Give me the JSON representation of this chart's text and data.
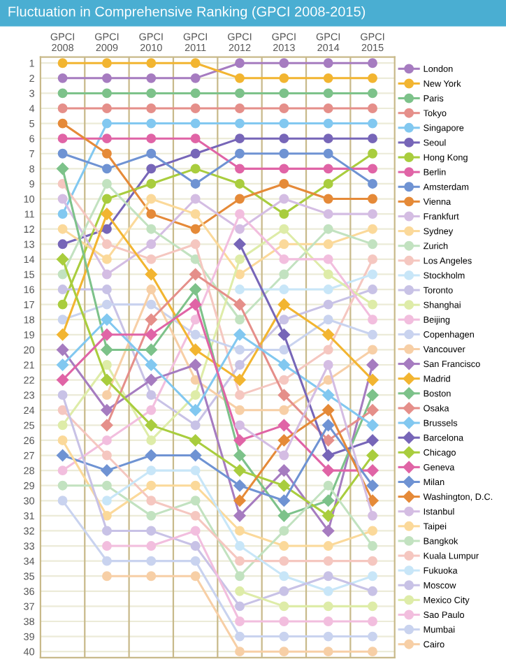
{
  "chart_data": {
    "type": "line",
    "title": "Fluctuation in Comprehensive Ranking (GPCI 2008-2015)",
    "categories": [
      "GPCI\n2008",
      "GPCI\n2009",
      "GPCI\n2010",
      "GPCI\n2011",
      "GPCI\n2012",
      "GPCI\n2013",
      "GPCI\n2014",
      "GPCI\n2015"
    ],
    "ylim": [
      40.4,
      0.6
    ],
    "yticks": [
      1,
      2,
      3,
      4,
      5,
      6,
      7,
      8,
      9,
      10,
      11,
      12,
      13,
      14,
      15,
      16,
      17,
      18,
      19,
      20,
      21,
      22,
      23,
      24,
      25,
      26,
      27,
      28,
      29,
      30,
      31,
      32,
      33,
      34,
      35,
      36,
      37,
      38,
      39,
      40
    ],
    "grid": "y",
    "legend": "right",
    "marker": "circle",
    "line_style": "solid",
    "series": [
      {
        "name": "London",
        "color": "#a67cc0",
        "values": [
          2,
          2,
          2,
          2,
          1,
          1,
          1,
          1
        ]
      },
      {
        "name": "New York",
        "color": "#f2b531",
        "values": [
          1,
          1,
          1,
          1,
          2,
          2,
          2,
          2
        ]
      },
      {
        "name": "Paris",
        "color": "#7dc28a",
        "values": [
          3,
          3,
          3,
          3,
          3,
          3,
          3,
          3
        ]
      },
      {
        "name": "Tokyo",
        "color": "#e58f8a",
        "values": [
          4,
          4,
          4,
          4,
          4,
          4,
          4,
          4
        ]
      },
      {
        "name": "Singapore",
        "color": "#82c8f0",
        "values": [
          11,
          5,
          5,
          5,
          5,
          5,
          5,
          5
        ]
      },
      {
        "name": "Seoul",
        "color": "#7766b8",
        "values": [
          13,
          12,
          8,
          7,
          6,
          6,
          6,
          6
        ]
      },
      {
        "name": "Hong Kong",
        "color": "#a9cd3e",
        "values": [
          17,
          10,
          9,
          8,
          9,
          11,
          9,
          7
        ]
      },
      {
        "name": "Berlin",
        "color": "#e064a6",
        "values": [
          6,
          6,
          6,
          6,
          8,
          8,
          8,
          8
        ]
      },
      {
        "name": "Amsterdam",
        "color": "#6f93d3",
        "values": [
          7,
          8,
          7,
          9,
          7,
          7,
          7,
          9
        ]
      },
      {
        "name": "Vienna",
        "color": "#e58a38",
        "values": [
          5,
          7,
          11,
          12,
          10,
          9,
          10,
          10
        ]
      },
      {
        "name": "Frankfurt",
        "color": "#d4bde3",
        "values": [
          10,
          15,
          13,
          10,
          12,
          10,
          11,
          11
        ]
      },
      {
        "name": "Sydney",
        "color": "#fbd99a",
        "values": [
          12,
          14,
          10,
          11,
          15,
          13,
          13,
          12
        ]
      },
      {
        "name": "Zurich",
        "color": "#c2e2c0",
        "values": [
          15,
          9,
          12,
          14,
          18,
          15,
          12,
          13
        ]
      },
      {
        "name": "Los Angeles",
        "color": "#f5c7c0",
        "values": [
          9,
          13,
          14,
          13,
          23,
          22,
          20,
          14
        ]
      },
      {
        "name": "Stockholm",
        "color": "#c8e6f8",
        "values": [
          null,
          null,
          null,
          null,
          16,
          16,
          16,
          15
        ]
      },
      {
        "name": "Toronto",
        "color": "#c8c2e6",
        "values": [
          16,
          16,
          23,
          25,
          21,
          18,
          17,
          16
        ]
      },
      {
        "name": "Shanghai",
        "color": "#deeca8",
        "values": [
          25,
          21,
          26,
          23,
          14,
          12,
          15,
          17
        ]
      },
      {
        "name": "Beijing",
        "color": "#f2bede",
        "values": [
          28,
          26,
          24,
          18,
          11,
          14,
          14,
          18
        ]
      },
      {
        "name": "Copenhagen",
        "color": "#c9d3ef",
        "values": [
          18,
          17,
          17,
          19,
          20,
          20,
          18,
          19
        ]
      },
      {
        "name": "Vancouver",
        "color": "#f7cfa6",
        "values": [
          null,
          23,
          16,
          22,
          24,
          24,
          22,
          20
        ]
      },
      {
        "name": "San Francisco",
        "color": "#a67cc0",
        "marker": "diamond",
        "values": [
          20,
          24,
          22,
          21,
          31,
          28,
          32,
          21
        ]
      },
      {
        "name": "Madrid",
        "color": "#f2b531",
        "marker": "diamond",
        "values": [
          19,
          11,
          15,
          20,
          22,
          17,
          19,
          22
        ]
      },
      {
        "name": "Boston",
        "color": "#7dc28a",
        "marker": "diamond",
        "values": [
          8,
          20,
          20,
          16,
          27,
          31,
          30,
          23
        ]
      },
      {
        "name": "Osaka",
        "color": "#e58f8a",
        "marker": "diamond",
        "values": [
          null,
          25,
          18,
          15,
          17,
          23,
          26,
          24
        ]
      },
      {
        "name": "Brussels",
        "color": "#82c8f0",
        "marker": "diamond",
        "values": [
          21,
          18,
          21,
          24,
          19,
          21,
          23,
          25
        ]
      },
      {
        "name": "Barcelona",
        "color": "#7766b8",
        "marker": "diamond",
        "values": [
          null,
          null,
          null,
          null,
          13,
          19,
          27,
          26
        ]
      },
      {
        "name": "Chicago",
        "color": "#a9cd3e",
        "marker": "diamond",
        "values": [
          14,
          22,
          25,
          26,
          28,
          29,
          31,
          27
        ]
      },
      {
        "name": "Geneva",
        "color": "#e064a6",
        "marker": "diamond",
        "values": [
          22,
          19,
          19,
          17,
          26,
          25,
          28,
          28
        ]
      },
      {
        "name": "Milan",
        "color": "#6f93d3",
        "marker": "diamond",
        "values": [
          27,
          28,
          27,
          27,
          29,
          30,
          25,
          29
        ]
      },
      {
        "name": "Washington, D.C.",
        "color": "#e58a38",
        "marker": "diamond",
        "values": [
          null,
          null,
          null,
          null,
          30,
          26,
          24,
          30
        ]
      },
      {
        "name": "Istanbul",
        "color": "#d4bde3",
        "values": [
          null,
          null,
          null,
          null,
          25,
          27,
          21,
          31
        ]
      },
      {
        "name": "Taipei",
        "color": "#fbd99a",
        "values": [
          26,
          31,
          29,
          29,
          32,
          33,
          33,
          32
        ]
      },
      {
        "name": "Bangkok",
        "color": "#c2e2c0",
        "values": [
          29,
          29,
          31,
          30,
          35,
          32,
          29,
          33
        ]
      },
      {
        "name": "Kuala Lumpur",
        "color": "#f5c7c0",
        "values": [
          24,
          27,
          30,
          31,
          34,
          34,
          34,
          34
        ]
      },
      {
        "name": "Fukuoka",
        "color": "#c8e6f8",
        "values": [
          null,
          30,
          28,
          28,
          33,
          35,
          36,
          35
        ]
      },
      {
        "name": "Moscow",
        "color": "#c8c2e6",
        "values": [
          23,
          32,
          32,
          33,
          37,
          36,
          35,
          36
        ]
      },
      {
        "name": "Mexico City",
        "color": "#deeca8",
        "values": [
          null,
          null,
          null,
          null,
          36,
          37,
          37,
          37
        ]
      },
      {
        "name": "Sao Paulo",
        "color": "#f2bede",
        "values": [
          null,
          33,
          33,
          32,
          38,
          38,
          38,
          38
        ]
      },
      {
        "name": "Mumbai",
        "color": "#c9d3ef",
        "values": [
          30,
          34,
          34,
          34,
          39,
          39,
          39,
          39
        ]
      },
      {
        "name": "Cairo",
        "color": "#f7cfa6",
        "values": [
          null,
          35,
          35,
          35,
          40,
          40,
          40,
          40
        ]
      }
    ]
  }
}
